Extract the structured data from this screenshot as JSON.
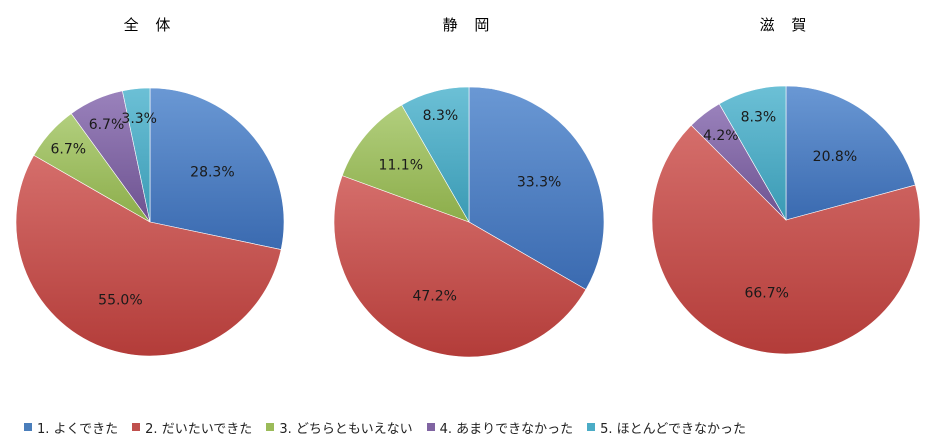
{
  "chart_data": {
    "type": "pie",
    "categories": [
      "1. よくできた",
      "2. だいたいできた",
      "3. どちらともいえない",
      "4. あまりできなかった",
      "5. ほとんどできなかった"
    ],
    "colors": [
      "#4a7ebb",
      "#c0504d",
      "#9bbb59",
      "#8064a2",
      "#4bacc6"
    ],
    "legend_position": "bottom",
    "charts": [
      {
        "title": "全 体",
        "values": [
          28.3,
          55.0,
          6.7,
          6.7,
          3.3
        ],
        "labels": [
          "28.3%",
          "55.0%",
          "6.7%",
          "6.7%",
          "3.3%"
        ]
      },
      {
        "title": "静 岡",
        "values": [
          33.3,
          47.2,
          11.1,
          0,
          8.3
        ],
        "labels": [
          "33.3%",
          "47.2%",
          "11.1%",
          "",
          "8.3%"
        ]
      },
      {
        "title": "滋 賀",
        "values": [
          20.8,
          66.7,
          0,
          4.2,
          8.3
        ],
        "labels": [
          "20.8%",
          "66.7%",
          "",
          "4.2%",
          "8.3%"
        ]
      }
    ]
  }
}
